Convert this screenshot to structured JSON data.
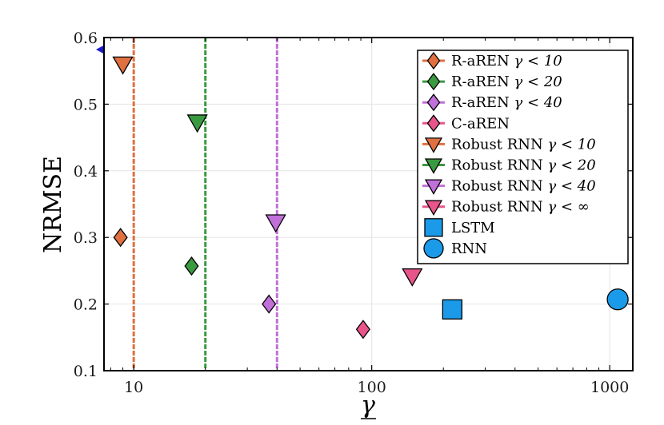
{
  "chart_data": {
    "type": "scatter",
    "xlabel": "γ",
    "ylabel": "NRMSE",
    "xscale": "log",
    "xlim": [
      7.5,
      1250
    ],
    "ylim": [
      0.1,
      0.6
    ],
    "xticks": [
      {
        "value": 10,
        "label": "10"
      },
      {
        "value": 100,
        "label": "100"
      },
      {
        "value": 1000,
        "label": "1000"
      }
    ],
    "yticks": [
      {
        "value": 0.1,
        "label": "0.1"
      },
      {
        "value": 0.2,
        "label": "0.2"
      },
      {
        "value": 0.3,
        "label": "0.3"
      },
      {
        "value": 0.4,
        "label": "0.4"
      },
      {
        "value": 0.5,
        "label": "0.5"
      },
      {
        "value": 0.6,
        "label": "0.6"
      }
    ],
    "grid": true,
    "legend_position": "top-right",
    "reference_lines": [
      {
        "x": 10,
        "color": "#e07040"
      },
      {
        "x": 20,
        "color": "#3a9a40"
      },
      {
        "x": 40,
        "color": "#c070d8"
      }
    ],
    "series": [
      {
        "name": "R-aREN γ < 10",
        "marker": "diamond",
        "color": "#e07040",
        "points": [
          {
            "x": 8.8,
            "y": 0.3
          }
        ]
      },
      {
        "name": "R-aREN γ < 20",
        "marker": "diamond",
        "color": "#3a9a40",
        "points": [
          {
            "x": 17.5,
            "y": 0.257
          }
        ]
      },
      {
        "name": "R-aREN γ < 40",
        "marker": "diamond",
        "color": "#c070d8",
        "points": [
          {
            "x": 37,
            "y": 0.2
          }
        ]
      },
      {
        "name": "C-aREN",
        "marker": "diamond",
        "color": "#e8558a",
        "points": [
          {
            "x": 92,
            "y": 0.162
          }
        ]
      },
      {
        "name": "Robust RNN γ < 10",
        "marker": "triangle-down",
        "color": "#e07040",
        "points": [
          {
            "x": 9,
            "y": 0.56
          }
        ]
      },
      {
        "name": "Robust RNN γ < 20",
        "marker": "triangle-down",
        "color": "#3a9a40",
        "points": [
          {
            "x": 18.5,
            "y": 0.473
          }
        ]
      },
      {
        "name": "Robust RNN γ < 40",
        "marker": "triangle-down",
        "color": "#c070d8",
        "points": [
          {
            "x": 39.5,
            "y": 0.323
          }
        ]
      },
      {
        "name": "Robust RNN γ < ∞",
        "marker": "triangle-down",
        "color": "#e8558a",
        "points": [
          {
            "x": 148,
            "y": 0.242
          }
        ]
      },
      {
        "name": "LSTM",
        "marker": "square",
        "color": "#1a9ae8",
        "points": [
          {
            "x": 218,
            "y": 0.192
          }
        ]
      },
      {
        "name": "RNN",
        "marker": "circle",
        "color": "#1a9ae8",
        "points": [
          {
            "x": 1080,
            "y": 0.207
          }
        ]
      }
    ],
    "legend_labels": [
      {
        "prefix": "R-aREN ",
        "math": "γ < 10"
      },
      {
        "prefix": "R-aREN ",
        "math": "γ < 20"
      },
      {
        "prefix": "R-aREN ",
        "math": "γ < 40"
      },
      {
        "prefix": "C-aREN",
        "math": ""
      },
      {
        "prefix": "Robust RNN ",
        "math": "γ < 10"
      },
      {
        "prefix": "Robust RNN ",
        "math": "γ < 20"
      },
      {
        "prefix": "Robust RNN ",
        "math": "γ < 40"
      },
      {
        "prefix": "Robust RNN ",
        "math": "γ < ∞"
      },
      {
        "prefix": "LSTM",
        "math": ""
      },
      {
        "prefix": "RNN",
        "math": ""
      }
    ]
  }
}
